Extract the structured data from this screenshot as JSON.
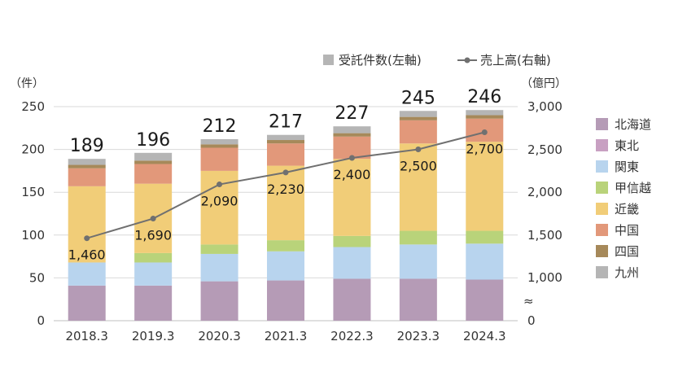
{
  "chart_data": {
    "type": "bar",
    "stacked": true,
    "categories": [
      "2018.3",
      "2019.3",
      "2020.3",
      "2021.3",
      "2022.3",
      "2023.3",
      "2024.3"
    ],
    "left_axis": {
      "unit": "（件）",
      "ticks": [
        0,
        50,
        100,
        150,
        200,
        250
      ],
      "ylim": [
        0,
        250
      ]
    },
    "right_axis": {
      "unit": "（億円）",
      "ticks": [
        "0",
        "1,000",
        "1,500",
        "2,000",
        "2,500",
        "3,000"
      ],
      "break_symbol": "≈",
      "visible_range": [
        750,
        3000
      ]
    },
    "legend_top": {
      "bars": "受託件数(左軸)",
      "line": "売上高(右軸)"
    },
    "totals": [
      "189",
      "196",
      "212",
      "217",
      "227",
      "245",
      "246"
    ],
    "series": [
      {
        "name": "北海道",
        "color": "#b59bb6",
        "values": [
          41,
          41,
          46,
          47,
          49,
          49,
          48
        ]
      },
      {
        "name": "東北",
        "color": "#c8a0c2",
        "values": [
          0,
          0,
          0,
          0,
          0,
          0,
          0
        ]
      },
      {
        "name": "関東",
        "color": "#b8d4ee",
        "values": [
          27,
          27,
          32,
          34,
          37,
          40,
          42
        ]
      },
      {
        "name": "甲信越",
        "color": "#b9d37a",
        "values": [
          0,
          11,
          11,
          13,
          13,
          16,
          15
        ]
      },
      {
        "name": "近畿",
        "color": "#f1cd78",
        "values": [
          89,
          81,
          86,
          87,
          90,
          102,
          104
        ]
      },
      {
        "name": "中国",
        "color": "#e2987a",
        "values": [
          21,
          23,
          27,
          26,
          26,
          27,
          27
        ]
      },
      {
        "name": "四国",
        "color": "#a6895a",
        "values": [
          4,
          4,
          4,
          4,
          4,
          4,
          4
        ]
      },
      {
        "name": "九州",
        "color": "#b5b5b5",
        "values": [
          7,
          9,
          6,
          6,
          8,
          7,
          6
        ]
      }
    ],
    "line": {
      "name": "売上高(右軸)",
      "color": "#707070",
      "values": [
        1460,
        1690,
        2090,
        2230,
        2400,
        2500,
        2700
      ],
      "labels": [
        "1,460",
        "1,690",
        "2,090",
        "2,230",
        "2,400",
        "2,500",
        "2,700"
      ]
    }
  }
}
